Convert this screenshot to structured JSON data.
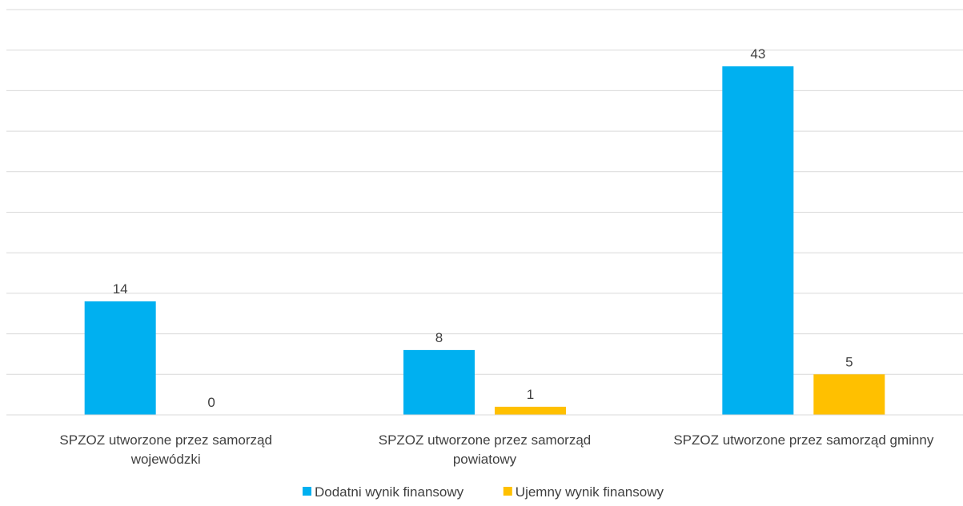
{
  "chart_data": {
    "type": "bar",
    "categories": [
      [
        "SPZOZ utworzone przez samorząd",
        "wojewódzki"
      ],
      [
        "SPZOZ utworzone przez samorząd",
        "powiatowy"
      ],
      [
        "SPZOZ utworzone przez samorząd gminny"
      ]
    ],
    "series": [
      {
        "name": "Dodatni wynik finansowy",
        "values": [
          14,
          8,
          43
        ],
        "color": "#00b0f0"
      },
      {
        "name": "Ujemny wynik finansowy",
        "values": [
          0,
          1,
          5
        ],
        "color": "#ffc000"
      }
    ],
    "ylim": [
      0,
      50
    ],
    "y_gridline_step": 5,
    "show_y_tick_labels": false,
    "grid": true,
    "legend_position": "bottom"
  }
}
